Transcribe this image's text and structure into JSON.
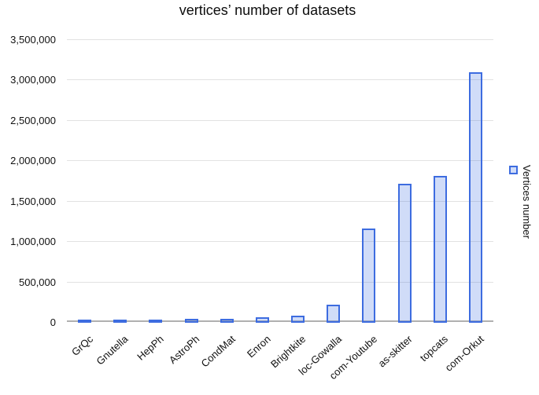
{
  "title": "vertices’ number of datasets",
  "legend": {
    "label": "Vertices number",
    "marker_icon": "square-icon",
    "position": "right"
  },
  "colors": {
    "bar_stroke": "#3d6ce0",
    "bar_fill": "#c9d7f8",
    "gridline": "#e2e2e2",
    "axis_line": "#b0b0b0",
    "text": "#111111"
  },
  "chart_data": {
    "type": "bar",
    "title": "vertices’ number of datasets",
    "xlabel": "",
    "ylabel": "",
    "categories": [
      "GrQc",
      "Gnutella",
      "HepPh",
      "AstroPh",
      "CondMat",
      "Enron",
      "Brightkite",
      "loc-Gowalla",
      "com-Youtube",
      "as-skitter",
      "topcats",
      "com-Orkut"
    ],
    "series": [
      {
        "name": "Vertices number",
        "values": [
          5242,
          6301,
          12008,
          18772,
          23133,
          36692,
          58228,
          196591,
          1134890,
          1696415,
          1791489,
          3072441
        ]
      }
    ],
    "ylim": [
      0,
      3500000
    ],
    "ytick_interval": 500000,
    "ytick_labels_top_to_bottom": [
      "3,500,000",
      "3,000,000",
      "2,500,000",
      "2,000,000",
      "1,500,000",
      "1,000,000",
      "500,000",
      "0"
    ],
    "grid": true,
    "legend_position": "right"
  }
}
